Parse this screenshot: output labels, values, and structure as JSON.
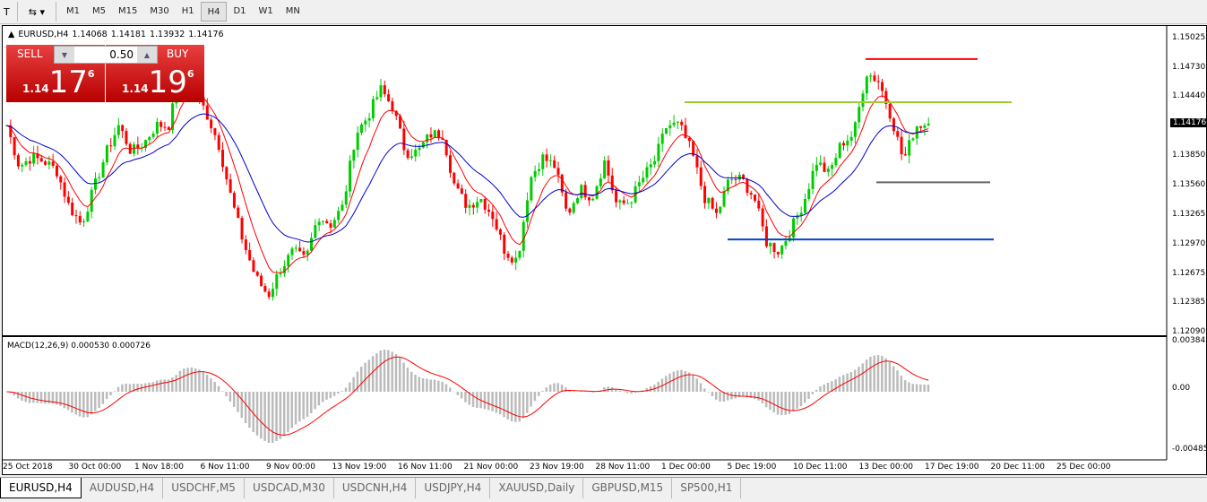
{
  "toolbar": {
    "timeframes": [
      "M1",
      "M5",
      "M15",
      "M30",
      "H1",
      "H4",
      "D1",
      "W1",
      "MN"
    ],
    "active": "H4"
  },
  "chart_info": {
    "symbol": "EURUSD,H4",
    "open": "1.14068",
    "high": "1.14181",
    "low": "1.13932",
    "close": "1.14176"
  },
  "trade": {
    "sell_label": "SELL",
    "buy_label": "BUY",
    "lot": "0.50",
    "sell_small": "1.14",
    "sell_big": "17",
    "sell_pip": "6",
    "buy_small": "1.14",
    "buy_big": "19",
    "buy_pip": "6"
  },
  "price_axis": [
    "1.15025",
    "1.14730",
    "1.14440",
    "1.14176",
    "1.13850",
    "1.13560",
    "1.13265",
    "1.12970",
    "1.12675",
    "1.12385",
    "1.12090"
  ],
  "current_price": "1.14176",
  "macd": {
    "label": "MACD(12,26,9) 0.000530 0.000726",
    "axis": [
      "0.003847",
      "0.00",
      "-0.004856"
    ]
  },
  "time_axis": [
    "25 Oct 2018",
    "30 Oct 00:00",
    "1 Nov 18:00",
    "6 Nov 11:00",
    "9 Nov 00:00",
    "13 Nov 19:00",
    "16 Nov 11:00",
    "21 Nov 00:00",
    "23 Nov 19:00",
    "28 Nov 11:00",
    "1 Dec 00:00",
    "5 Dec 19:00",
    "10 Dec 11:00",
    "13 Dec 00:00",
    "17 Dec 19:00",
    "20 Dec 11:00",
    "25 Dec 00:00"
  ],
  "chart_data": {
    "type": "candlestick",
    "ylim": [
      1.1209,
      1.15025
    ],
    "approx_closes": [
      1.1416,
      1.1375,
      1.1384,
      1.138,
      1.1371,
      1.1335,
      1.1317,
      1.1353,
      1.1389,
      1.1416,
      1.1389,
      1.1398,
      1.1416,
      1.1416,
      1.1469,
      1.1452,
      1.1429,
      1.1398,
      1.1344,
      1.1299,
      1.1264,
      1.1246,
      1.1273,
      1.129,
      1.1281,
      1.1326,
      1.1317,
      1.1335,
      1.1407,
      1.1425,
      1.1452,
      1.1434,
      1.1389,
      1.1389,
      1.1407,
      1.1407,
      1.1353,
      1.1335,
      1.1344,
      1.1326,
      1.129,
      1.1281,
      1.1362,
      1.1384,
      1.1375,
      1.1326,
      1.1353,
      1.1344,
      1.138,
      1.1335,
      1.134,
      1.1362,
      1.138,
      1.1416,
      1.1416,
      1.1389,
      1.1344,
      1.1326,
      1.1362,
      1.1362,
      1.1344,
      1.1299,
      1.129,
      1.1313,
      1.134,
      1.138,
      1.1367,
      1.1398,
      1.1407,
      1.1469,
      1.146,
      1.1425,
      1.138,
      1.1416,
      1.14176
    ],
    "horizontal_lines": [
      {
        "price": 1.1482,
        "color": "#ff0000"
      },
      {
        "price": 1.1439,
        "color": "#9acd32"
      },
      {
        "price": 1.1359,
        "color": "#666666"
      },
      {
        "price": 1.1302,
        "color": "#0044cc"
      }
    ],
    "colors": {
      "bull": "#00cc00",
      "bear": "#ff0000",
      "ma_fast": "#ff0000",
      "ma_slow": "#0000cc",
      "macd_hist": "#bbbbbb",
      "macd_signal": "#ff0000"
    }
  },
  "tabs": [
    "EURUSD,H4",
    "AUDUSD,H4",
    "USDCHF,M5",
    "USDCAD,M30",
    "USDCNH,H4",
    "USDJPY,H4",
    "XAUUSD,Daily",
    "GBPUSD,M15",
    "SP500,H1"
  ]
}
